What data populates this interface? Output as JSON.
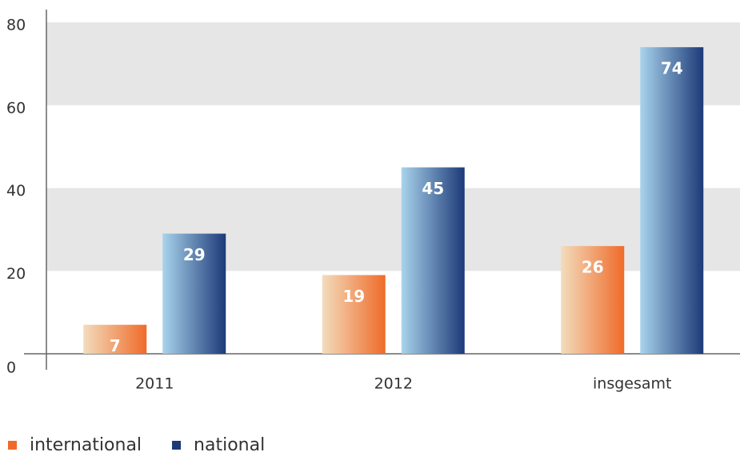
{
  "chart_data": {
    "type": "bar",
    "categories": [
      "2011",
      "2012",
      "insgesamt"
    ],
    "series": [
      {
        "name": "international",
        "color": "#ef6b2a",
        "values": [
          7,
          19,
          26
        ]
      },
      {
        "name": "national",
        "color": "#1c3a78",
        "values": [
          29,
          45,
          74
        ]
      }
    ],
    "ylim": [
      0,
      80
    ],
    "yticks": [
      0,
      20,
      40,
      60,
      80
    ],
    "grid": true,
    "legend": "bottom-left"
  }
}
